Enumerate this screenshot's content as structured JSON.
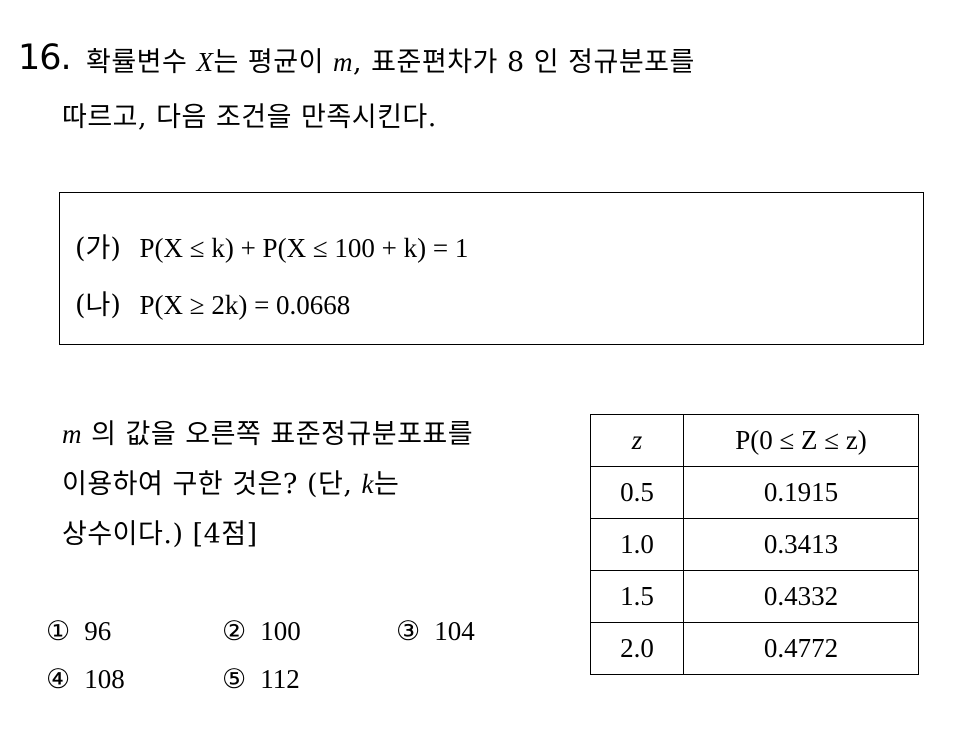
{
  "question": {
    "number": "16.",
    "stem_line1_a": "확률변수",
    "stem_var": "X",
    "stem_line1_b": "는 평균이",
    "stem_mean": "m",
    "stem_line1_c": ", 표준편차가 8 인 정규분포를",
    "stem_line2": "따르고, 다음 조건을 만족시킨다."
  },
  "conditions": [
    {
      "label": "(가)",
      "expr": "P(X ≤ k) + P(X ≤ 100 + k) = 1"
    },
    {
      "label": "(나)",
      "expr": "P(X ≥ 2k) = 0.0668"
    }
  ],
  "ask": {
    "line1_var": "m",
    "line1": "의 값을 오른쪽 표준정규분포표를",
    "line2_a": "이용하여 구한 것은? (단,",
    "line2_var": "k",
    "line2_b": "는",
    "line3": "상수이다.) [4점]"
  },
  "table": {
    "headers": [
      "z",
      "P(0 ≤ Z ≤ z)"
    ],
    "rows": [
      [
        "0.5",
        "0.1915"
      ],
      [
        "1.0",
        "0.3413"
      ],
      [
        "1.5",
        "0.4332"
      ],
      [
        "2.0",
        "0.4772"
      ]
    ]
  },
  "choices": [
    {
      "mark": "①",
      "value": "96"
    },
    {
      "mark": "②",
      "value": "100"
    },
    {
      "mark": "③",
      "value": "104"
    },
    {
      "mark": "④",
      "value": "108"
    },
    {
      "mark": "⑤",
      "value": "112"
    }
  ]
}
